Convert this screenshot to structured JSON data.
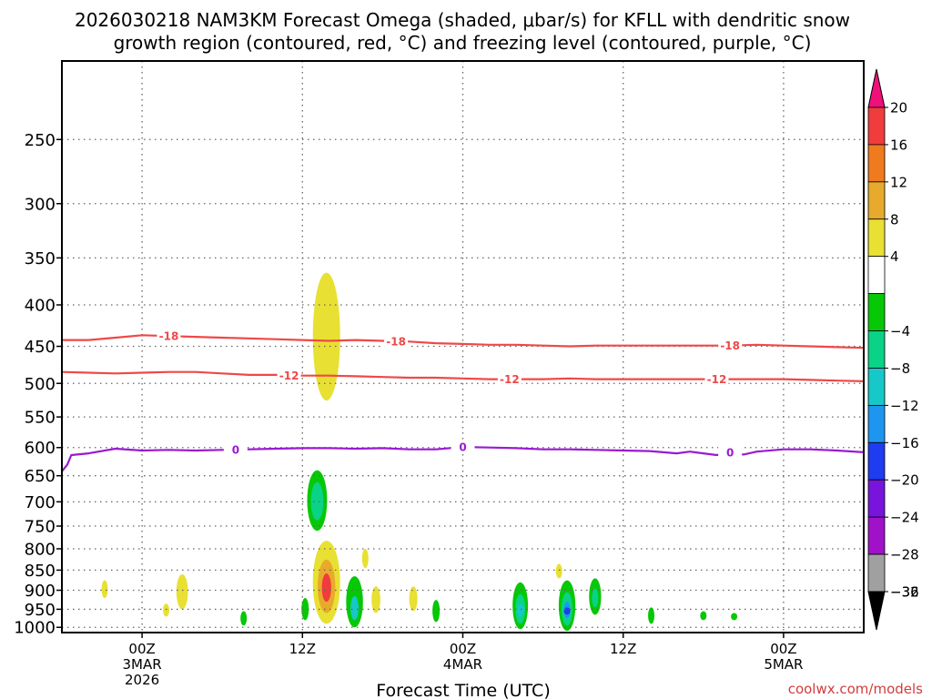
{
  "chart_data": {
    "type": "contour",
    "title_line1": "2026030218 NAM3KM Forecast Omega (shaded, μbar/s) for KFLL with dendritic snow",
    "title_line2": "growth region (contoured, red, °C) and freezing level (contoured, purple, °C)",
    "xlabel": "Forecast Time (UTC)",
    "credit": "coolwx.com/models",
    "x_range_hours": [
      -6,
      54
    ],
    "x_ticks": [
      {
        "hour": 0,
        "lines": [
          "00Z",
          "3MAR",
          "2026"
        ]
      },
      {
        "hour": 12,
        "lines": [
          "12Z"
        ]
      },
      {
        "hour": 24,
        "lines": [
          "00Z",
          "4MAR"
        ]
      },
      {
        "hour": 36,
        "lines": [
          "12Z"
        ]
      },
      {
        "hour": 48,
        "lines": [
          "00Z",
          "5MAR"
        ]
      }
    ],
    "y_range_hpa": [
      1015,
      200
    ],
    "y_ticks": [
      250,
      300,
      350,
      400,
      450,
      500,
      550,
      600,
      650,
      700,
      750,
      800,
      850,
      900,
      950,
      1000
    ],
    "ground_band_hpa": [
      1015,
      1030
    ],
    "colorbar": {
      "labels": [
        "20",
        "16",
        "12",
        "8",
        "4",
        "−4",
        "−8",
        "−12",
        "−16",
        "−20",
        "−24",
        "−28",
        "−32",
        "−36"
      ],
      "colors": [
        "#f0107a",
        "#f03c3c",
        "#f07a1e",
        "#e8aa2c",
        "#e8e032",
        "#ffffff",
        "#06c806",
        "#0ad286",
        "#16c8c8",
        "#1e96f0",
        "#1e3cf0",
        "#7814dc",
        "#a012c8",
        "#a0a0a0",
        "#000000"
      ],
      "neutral_color": "#ffffff"
    },
    "contours": [
      {
        "name": "dendritic -18C",
        "color": "#ef4848",
        "label": "-18",
        "points": [
          [
            -6,
            442
          ],
          [
            -4,
            442
          ],
          [
            -2,
            439
          ],
          [
            0,
            436
          ],
          [
            2,
            437
          ],
          [
            4,
            438
          ],
          [
            6,
            439
          ],
          [
            8,
            440
          ],
          [
            10,
            441
          ],
          [
            12,
            442
          ],
          [
            14,
            443
          ],
          [
            16,
            442
          ],
          [
            18,
            443
          ],
          [
            20,
            444
          ],
          [
            22,
            446
          ],
          [
            24,
            447
          ],
          [
            26,
            448
          ],
          [
            28,
            448
          ],
          [
            30,
            449
          ],
          [
            32,
            450
          ],
          [
            34,
            449
          ],
          [
            36,
            449
          ],
          [
            38,
            449
          ],
          [
            40,
            449
          ],
          [
            42,
            449
          ],
          [
            44,
            449
          ],
          [
            46,
            448
          ],
          [
            48,
            449
          ],
          [
            50,
            450
          ],
          [
            52,
            451
          ],
          [
            54,
            452
          ]
        ],
        "label_hours": [
          2,
          19,
          44
        ]
      },
      {
        "name": "dendritic -12C",
        "color": "#ef4848",
        "label": "-12",
        "points": [
          [
            -6,
            484
          ],
          [
            -4,
            485
          ],
          [
            -2,
            486
          ],
          [
            0,
            485
          ],
          [
            2,
            484
          ],
          [
            4,
            484
          ],
          [
            6,
            486
          ],
          [
            8,
            488
          ],
          [
            10,
            488
          ],
          [
            12,
            489
          ],
          [
            14,
            489
          ],
          [
            16,
            490
          ],
          [
            18,
            491
          ],
          [
            20,
            492
          ],
          [
            22,
            492
          ],
          [
            24,
            493
          ],
          [
            26,
            494
          ],
          [
            28,
            494
          ],
          [
            30,
            494
          ],
          [
            32,
            493
          ],
          [
            34,
            494
          ],
          [
            36,
            494
          ],
          [
            38,
            494
          ],
          [
            40,
            494
          ],
          [
            42,
            494
          ],
          [
            44,
            494
          ],
          [
            46,
            494
          ],
          [
            48,
            494
          ],
          [
            50,
            495
          ],
          [
            52,
            496
          ],
          [
            54,
            497
          ]
        ],
        "label_hours": [
          11,
          27.5,
          43
        ]
      },
      {
        "name": "freezing level 0C",
        "color": "#9a1ad2",
        "label": "0",
        "points": [
          [
            -6,
            642
          ],
          [
            -5.6,
            630
          ],
          [
            -5.3,
            613
          ],
          [
            -4,
            610
          ],
          [
            -2,
            602
          ],
          [
            0,
            605
          ],
          [
            2,
            604
          ],
          [
            4,
            605
          ],
          [
            6,
            604
          ],
          [
            8,
            603
          ],
          [
            10,
            602
          ],
          [
            12,
            601
          ],
          [
            14,
            601
          ],
          [
            16,
            602
          ],
          [
            18,
            601
          ],
          [
            20,
            603
          ],
          [
            22,
            603
          ],
          [
            24,
            599
          ],
          [
            26,
            600
          ],
          [
            28,
            601
          ],
          [
            30,
            603
          ],
          [
            32,
            603
          ],
          [
            34,
            604
          ],
          [
            36,
            605
          ],
          [
            38,
            606
          ],
          [
            40,
            610
          ],
          [
            41,
            607
          ],
          [
            42,
            610
          ],
          [
            43,
            613
          ],
          [
            44,
            608
          ],
          [
            45,
            612
          ],
          [
            46,
            607
          ],
          [
            48,
            603
          ],
          [
            50,
            603
          ],
          [
            52,
            605
          ],
          [
            54,
            608
          ]
        ],
        "label_hours": [
          7,
          24,
          44
        ]
      }
    ],
    "omega_blobs": [
      {
        "hour": 13.8,
        "hpa_top": 365,
        "hpa_bottom": 525,
        "color": "#e8e032"
      },
      {
        "hour": 13.1,
        "hpa_top": 640,
        "hpa_bottom": 760,
        "color": "#06c806"
      },
      {
        "hour": 13.1,
        "hpa_top": 662,
        "hpa_bottom": 738,
        "color": "#0ad286"
      },
      {
        "hour": 13.8,
        "hpa_top": 782,
        "hpa_bottom": 990,
        "color": "#e8e032"
      },
      {
        "hour": 13.8,
        "hpa_top": 825,
        "hpa_bottom": 960,
        "color": "#e8aa2c"
      },
      {
        "hour": 13.8,
        "hpa_top": 858,
        "hpa_bottom": 930,
        "color": "#f03c3c"
      },
      {
        "hour": 12.2,
        "hpa_top": 920,
        "hpa_bottom": 980,
        "color": "#06c806"
      },
      {
        "hour": 15.9,
        "hpa_top": 865,
        "hpa_bottom": 1000,
        "color": "#06c806"
      },
      {
        "hour": 15.9,
        "hpa_top": 915,
        "hpa_bottom": 980,
        "color": "#16c8c8"
      },
      {
        "hour": 17.5,
        "hpa_top": 890,
        "hpa_bottom": 960,
        "color": "#e8e032"
      },
      {
        "hour": 16.7,
        "hpa_top": 800,
        "hpa_bottom": 845,
        "color": "#e8e032"
      },
      {
        "hour": 20.3,
        "hpa_top": 890,
        "hpa_bottom": 955,
        "color": "#e8e032"
      },
      {
        "hour": 22.0,
        "hpa_top": 925,
        "hpa_bottom": 985,
        "color": "#06c806"
      },
      {
        "hour": 28.3,
        "hpa_top": 880,
        "hpa_bottom": 1005,
        "color": "#06c806"
      },
      {
        "hour": 28.3,
        "hpa_top": 910,
        "hpa_bottom": 990,
        "color": "#0ad286"
      },
      {
        "hour": 28.3,
        "hpa_top": 935,
        "hpa_bottom": 970,
        "color": "#16c8c8"
      },
      {
        "hour": 31.2,
        "hpa_top": 835,
        "hpa_bottom": 870,
        "color": "#e8e032"
      },
      {
        "hour": 31.8,
        "hpa_top": 875,
        "hpa_bottom": 1010,
        "color": "#06c806"
      },
      {
        "hour": 31.8,
        "hpa_top": 905,
        "hpa_bottom": 995,
        "color": "#0ad286"
      },
      {
        "hour": 31.8,
        "hpa_top": 930,
        "hpa_bottom": 975,
        "color": "#1e96f0"
      },
      {
        "hour": 31.8,
        "hpa_top": 945,
        "hpa_bottom": 965,
        "color": "#1e3cf0"
      },
      {
        "hour": 33.9,
        "hpa_top": 870,
        "hpa_bottom": 965,
        "color": "#06c806"
      },
      {
        "hour": 33.9,
        "hpa_top": 895,
        "hpa_bottom": 945,
        "color": "#0ad286"
      },
      {
        "hour": 38.1,
        "hpa_top": 945,
        "hpa_bottom": 990,
        "color": "#06c806"
      },
      {
        "hour": 42.0,
        "hpa_top": 955,
        "hpa_bottom": 980,
        "color": "#06c806"
      },
      {
        "hour": 44.3,
        "hpa_top": 960,
        "hpa_bottom": 980,
        "color": "#06c806"
      },
      {
        "hour": -2.8,
        "hpa_top": 875,
        "hpa_bottom": 920,
        "color": "#e8e032"
      },
      {
        "hour": 1.8,
        "hpa_top": 935,
        "hpa_bottom": 970,
        "color": "#e8e032"
      },
      {
        "hour": 3.0,
        "hpa_top": 860,
        "hpa_bottom": 950,
        "color": "#e8e032"
      },
      {
        "hour": 7.6,
        "hpa_top": 955,
        "hpa_bottom": 995,
        "color": "#06c806"
      }
    ]
  }
}
